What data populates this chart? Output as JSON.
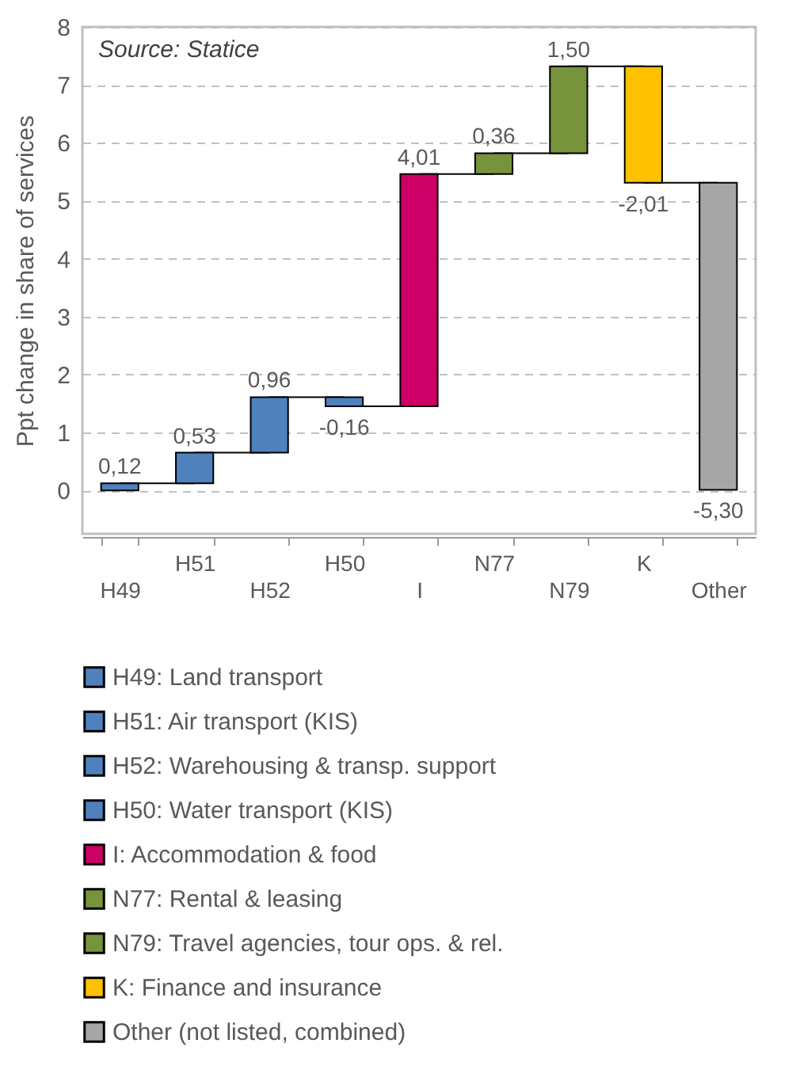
{
  "chart_data": {
    "type": "bar",
    "ylabel": "Ppt change in share of services",
    "annotations": [
      "Source: Statice"
    ],
    "categories": [
      "H49",
      "H51",
      "H52",
      "H50",
      "I",
      "N77",
      "N79",
      "K",
      "Other"
    ],
    "series": [
      {
        "name": "H49: Land transport",
        "color": "#4f81bd",
        "values": [
          0.12,
          null,
          null,
          null,
          null,
          null,
          null,
          null,
          null
        ],
        "base": [
          0,
          null,
          null,
          null,
          null,
          null,
          null,
          null,
          null
        ],
        "value_labels": [
          "0,12",
          null,
          null,
          null,
          null,
          null,
          null,
          null,
          null
        ]
      },
      {
        "name": "H51: Air transport (KIS)",
        "color": "#4f81bd",
        "values": [
          null,
          0.53,
          null,
          null,
          null,
          null,
          null,
          null,
          null
        ],
        "base": [
          null,
          0.12,
          null,
          null,
          null,
          null,
          null,
          null,
          null
        ],
        "value_labels": [
          null,
          "0,53",
          null,
          null,
          null,
          null,
          null,
          null,
          null
        ]
      },
      {
        "name": "H52: Warehousing & transp. support",
        "color": "#4f81bd",
        "values": [
          null,
          null,
          0.96,
          null,
          null,
          null,
          null,
          null,
          null
        ],
        "base": [
          null,
          null,
          0.65,
          null,
          null,
          null,
          null,
          null,
          null
        ],
        "value_labels": [
          null,
          null,
          "0,96",
          null,
          null,
          null,
          null,
          null,
          null
        ]
      },
      {
        "name": "H50: Water transport (KIS)",
        "color": "#4f81bd",
        "values": [
          null,
          null,
          null,
          -0.16,
          null,
          null,
          null,
          null,
          null
        ],
        "base": [
          null,
          null,
          null,
          1.61,
          null,
          null,
          null,
          null,
          null
        ],
        "value_labels": [
          null,
          null,
          null,
          "-0,16",
          null,
          null,
          null,
          null,
          null
        ]
      },
      {
        "name": "I: Accommodation & food",
        "color": "#cc0066",
        "values": [
          null,
          null,
          null,
          null,
          4.01,
          null,
          null,
          null,
          null
        ],
        "base": [
          null,
          null,
          null,
          null,
          1.45,
          null,
          null,
          null,
          null
        ],
        "value_labels": [
          null,
          null,
          null,
          null,
          "4,01",
          null,
          null,
          null,
          null
        ]
      },
      {
        "name": "N77: Rental & leasing",
        "color": "#77933c",
        "values": [
          null,
          null,
          null,
          null,
          null,
          0.36,
          null,
          null,
          null
        ],
        "base": [
          null,
          null,
          null,
          null,
          null,
          5.46,
          null,
          null,
          null
        ],
        "value_labels": [
          null,
          null,
          null,
          null,
          null,
          "0,36",
          null,
          null,
          null
        ]
      },
      {
        "name": "N79: Travel agencies, tour ops. & rel.",
        "color": "#77933c",
        "values": [
          null,
          null,
          null,
          null,
          null,
          null,
          1.5,
          null,
          null
        ],
        "base": [
          null,
          null,
          null,
          null,
          null,
          null,
          5.82,
          null,
          null
        ],
        "value_labels": [
          null,
          null,
          null,
          null,
          null,
          null,
          "1,50",
          null,
          null
        ]
      },
      {
        "name": "K: Finance and insurance",
        "color": "#ffc000",
        "values": [
          null,
          null,
          null,
          null,
          null,
          null,
          null,
          -2.01,
          null
        ],
        "base": [
          null,
          null,
          null,
          null,
          null,
          null,
          null,
          7.32,
          null
        ],
        "value_labels": [
          null,
          null,
          null,
          null,
          null,
          null,
          null,
          "-2,01",
          null
        ]
      },
      {
        "name": "Other (not listed, combined)",
        "color": "#a6a6a6",
        "values": [
          null,
          null,
          null,
          null,
          null,
          null,
          null,
          null,
          -5.3
        ],
        "base": [
          null,
          null,
          null,
          null,
          null,
          null,
          null,
          null,
          5.31
        ],
        "value_labels": [
          null,
          null,
          null,
          null,
          null,
          null,
          null,
          null,
          "-5,30"
        ]
      }
    ],
    "ylim": [
      -0.75,
      8
    ],
    "yticks": [
      0,
      1,
      2,
      3,
      4,
      5,
      6,
      7,
      8
    ],
    "grid": "y",
    "legend": "bottom"
  }
}
